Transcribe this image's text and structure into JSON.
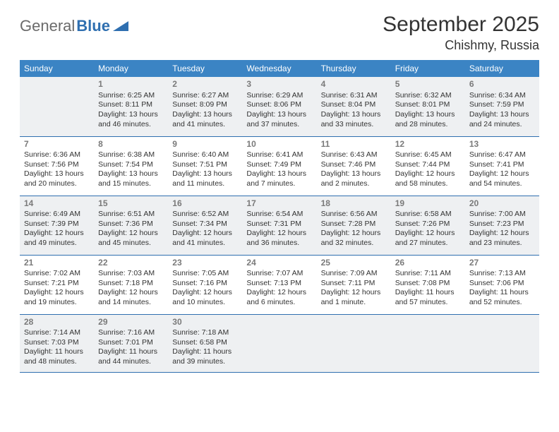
{
  "logo": {
    "word1": "General",
    "word2": "Blue"
  },
  "title": "September 2025",
  "location": "Chishmy, Russia",
  "colors": {
    "header_bg": "#3b84c4",
    "header_text": "#ffffff",
    "shade_bg": "#eef0f2",
    "rule": "#2f6fb0",
    "daynum": "#7a7a7a",
    "body_text": "#333333",
    "logo_accent": "#2f6fb0"
  },
  "weekdays": [
    "Sunday",
    "Monday",
    "Tuesday",
    "Wednesday",
    "Thursday",
    "Friday",
    "Saturday"
  ],
  "weeks": [
    {
      "shaded": true,
      "cells": [
        {
          "day": "",
          "sunrise": "",
          "sunset": "",
          "daylight": ""
        },
        {
          "day": "1",
          "sunrise": "Sunrise: 6:25 AM",
          "sunset": "Sunset: 8:11 PM",
          "daylight": "Daylight: 13 hours and 46 minutes."
        },
        {
          "day": "2",
          "sunrise": "Sunrise: 6:27 AM",
          "sunset": "Sunset: 8:09 PM",
          "daylight": "Daylight: 13 hours and 41 minutes."
        },
        {
          "day": "3",
          "sunrise": "Sunrise: 6:29 AM",
          "sunset": "Sunset: 8:06 PM",
          "daylight": "Daylight: 13 hours and 37 minutes."
        },
        {
          "day": "4",
          "sunrise": "Sunrise: 6:31 AM",
          "sunset": "Sunset: 8:04 PM",
          "daylight": "Daylight: 13 hours and 33 minutes."
        },
        {
          "day": "5",
          "sunrise": "Sunrise: 6:32 AM",
          "sunset": "Sunset: 8:01 PM",
          "daylight": "Daylight: 13 hours and 28 minutes."
        },
        {
          "day": "6",
          "sunrise": "Sunrise: 6:34 AM",
          "sunset": "Sunset: 7:59 PM",
          "daylight": "Daylight: 13 hours and 24 minutes."
        }
      ]
    },
    {
      "shaded": false,
      "cells": [
        {
          "day": "7",
          "sunrise": "Sunrise: 6:36 AM",
          "sunset": "Sunset: 7:56 PM",
          "daylight": "Daylight: 13 hours and 20 minutes."
        },
        {
          "day": "8",
          "sunrise": "Sunrise: 6:38 AM",
          "sunset": "Sunset: 7:54 PM",
          "daylight": "Daylight: 13 hours and 15 minutes."
        },
        {
          "day": "9",
          "sunrise": "Sunrise: 6:40 AM",
          "sunset": "Sunset: 7:51 PM",
          "daylight": "Daylight: 13 hours and 11 minutes."
        },
        {
          "day": "10",
          "sunrise": "Sunrise: 6:41 AM",
          "sunset": "Sunset: 7:49 PM",
          "daylight": "Daylight: 13 hours and 7 minutes."
        },
        {
          "day": "11",
          "sunrise": "Sunrise: 6:43 AM",
          "sunset": "Sunset: 7:46 PM",
          "daylight": "Daylight: 13 hours and 2 minutes."
        },
        {
          "day": "12",
          "sunrise": "Sunrise: 6:45 AM",
          "sunset": "Sunset: 7:44 PM",
          "daylight": "Daylight: 12 hours and 58 minutes."
        },
        {
          "day": "13",
          "sunrise": "Sunrise: 6:47 AM",
          "sunset": "Sunset: 7:41 PM",
          "daylight": "Daylight: 12 hours and 54 minutes."
        }
      ]
    },
    {
      "shaded": true,
      "cells": [
        {
          "day": "14",
          "sunrise": "Sunrise: 6:49 AM",
          "sunset": "Sunset: 7:39 PM",
          "daylight": "Daylight: 12 hours and 49 minutes."
        },
        {
          "day": "15",
          "sunrise": "Sunrise: 6:51 AM",
          "sunset": "Sunset: 7:36 PM",
          "daylight": "Daylight: 12 hours and 45 minutes."
        },
        {
          "day": "16",
          "sunrise": "Sunrise: 6:52 AM",
          "sunset": "Sunset: 7:34 PM",
          "daylight": "Daylight: 12 hours and 41 minutes."
        },
        {
          "day": "17",
          "sunrise": "Sunrise: 6:54 AM",
          "sunset": "Sunset: 7:31 PM",
          "daylight": "Daylight: 12 hours and 36 minutes."
        },
        {
          "day": "18",
          "sunrise": "Sunrise: 6:56 AM",
          "sunset": "Sunset: 7:28 PM",
          "daylight": "Daylight: 12 hours and 32 minutes."
        },
        {
          "day": "19",
          "sunrise": "Sunrise: 6:58 AM",
          "sunset": "Sunset: 7:26 PM",
          "daylight": "Daylight: 12 hours and 27 minutes."
        },
        {
          "day": "20",
          "sunrise": "Sunrise: 7:00 AM",
          "sunset": "Sunset: 7:23 PM",
          "daylight": "Daylight: 12 hours and 23 minutes."
        }
      ]
    },
    {
      "shaded": false,
      "cells": [
        {
          "day": "21",
          "sunrise": "Sunrise: 7:02 AM",
          "sunset": "Sunset: 7:21 PM",
          "daylight": "Daylight: 12 hours and 19 minutes."
        },
        {
          "day": "22",
          "sunrise": "Sunrise: 7:03 AM",
          "sunset": "Sunset: 7:18 PM",
          "daylight": "Daylight: 12 hours and 14 minutes."
        },
        {
          "day": "23",
          "sunrise": "Sunrise: 7:05 AM",
          "sunset": "Sunset: 7:16 PM",
          "daylight": "Daylight: 12 hours and 10 minutes."
        },
        {
          "day": "24",
          "sunrise": "Sunrise: 7:07 AM",
          "sunset": "Sunset: 7:13 PM",
          "daylight": "Daylight: 12 hours and 6 minutes."
        },
        {
          "day": "25",
          "sunrise": "Sunrise: 7:09 AM",
          "sunset": "Sunset: 7:11 PM",
          "daylight": "Daylight: 12 hours and 1 minute."
        },
        {
          "day": "26",
          "sunrise": "Sunrise: 7:11 AM",
          "sunset": "Sunset: 7:08 PM",
          "daylight": "Daylight: 11 hours and 57 minutes."
        },
        {
          "day": "27",
          "sunrise": "Sunrise: 7:13 AM",
          "sunset": "Sunset: 7:06 PM",
          "daylight": "Daylight: 11 hours and 52 minutes."
        }
      ]
    },
    {
      "shaded": true,
      "cells": [
        {
          "day": "28",
          "sunrise": "Sunrise: 7:14 AM",
          "sunset": "Sunset: 7:03 PM",
          "daylight": "Daylight: 11 hours and 48 minutes."
        },
        {
          "day": "29",
          "sunrise": "Sunrise: 7:16 AM",
          "sunset": "Sunset: 7:01 PM",
          "daylight": "Daylight: 11 hours and 44 minutes."
        },
        {
          "day": "30",
          "sunrise": "Sunrise: 7:18 AM",
          "sunset": "Sunset: 6:58 PM",
          "daylight": "Daylight: 11 hours and 39 minutes."
        },
        {
          "day": "",
          "sunrise": "",
          "sunset": "",
          "daylight": ""
        },
        {
          "day": "",
          "sunrise": "",
          "sunset": "",
          "daylight": ""
        },
        {
          "day": "",
          "sunrise": "",
          "sunset": "",
          "daylight": ""
        },
        {
          "day": "",
          "sunrise": "",
          "sunset": "",
          "daylight": ""
        }
      ]
    }
  ]
}
